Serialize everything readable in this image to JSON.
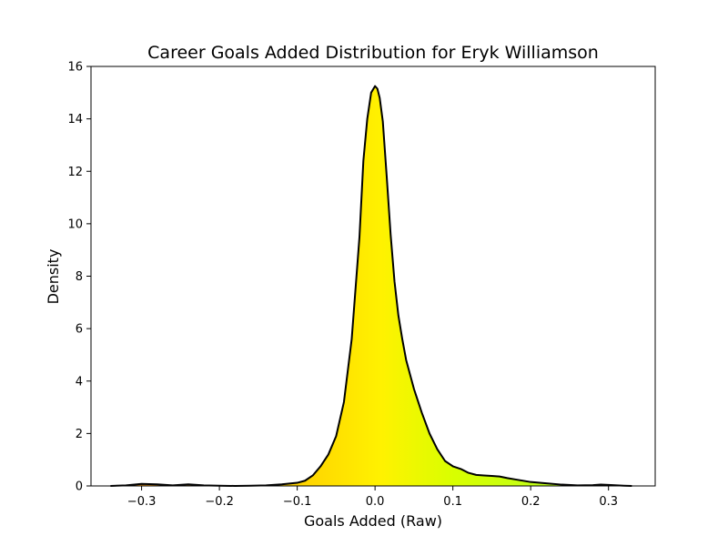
{
  "chart_data": {
    "type": "area",
    "title": "Career Goals Added Distribution for Eryk Williamson",
    "xlabel": "Goals Added (Raw)",
    "ylabel": "Density",
    "xlim": [
      -0.365,
      0.36
    ],
    "ylim": [
      0,
      16
    ],
    "x_ticks": [
      -0.3,
      -0.2,
      -0.1,
      0.0,
      0.1,
      0.2,
      0.3
    ],
    "x_tick_labels": [
      "−0.3",
      "−0.2",
      "−0.1",
      "0.0",
      "0.1",
      "0.2",
      "0.3"
    ],
    "y_ticks": [
      0,
      2,
      4,
      6,
      8,
      10,
      12,
      14,
      16
    ],
    "y_tick_labels": [
      "0",
      "2",
      "4",
      "6",
      "8",
      "10",
      "12",
      "14",
      "16"
    ],
    "grid": false,
    "legend": "none",
    "fill_colormap": [
      "#f7941d",
      "#ffd400",
      "#fff200",
      "#d8ff00",
      "#a8ff30"
    ],
    "line_color": "#000000",
    "series": [
      {
        "x": [
          -0.34,
          -0.32,
          -0.3,
          -0.28,
          -0.26,
          -0.24,
          -0.22,
          -0.2,
          -0.18,
          -0.16,
          -0.14,
          -0.12,
          -0.1,
          -0.09,
          -0.08,
          -0.07,
          -0.06,
          -0.05,
          -0.04,
          -0.03,
          -0.02,
          -0.015,
          -0.01,
          -0.005,
          0.0,
          0.003,
          0.006,
          0.01,
          0.015,
          0.02,
          0.025,
          0.03,
          0.035,
          0.04,
          0.05,
          0.06,
          0.07,
          0.08,
          0.09,
          0.1,
          0.11,
          0.12,
          0.13,
          0.14,
          0.15,
          0.16,
          0.17,
          0.18,
          0.2,
          0.22,
          0.24,
          0.26,
          0.28,
          0.29,
          0.3,
          0.32,
          0.33
        ],
        "y": [
          0.0,
          0.02,
          0.08,
          0.06,
          0.02,
          0.06,
          0.02,
          0.01,
          0.0,
          0.01,
          0.02,
          0.06,
          0.12,
          0.2,
          0.4,
          0.75,
          1.2,
          1.9,
          3.2,
          5.6,
          9.5,
          12.4,
          14.0,
          15.0,
          15.25,
          15.15,
          14.8,
          13.9,
          11.8,
          9.6,
          7.8,
          6.5,
          5.6,
          4.8,
          3.7,
          2.8,
          2.0,
          1.4,
          0.95,
          0.75,
          0.65,
          0.5,
          0.42,
          0.4,
          0.38,
          0.36,
          0.3,
          0.25,
          0.15,
          0.1,
          0.05,
          0.02,
          0.03,
          0.05,
          0.04,
          0.01,
          0.0
        ]
      }
    ]
  }
}
